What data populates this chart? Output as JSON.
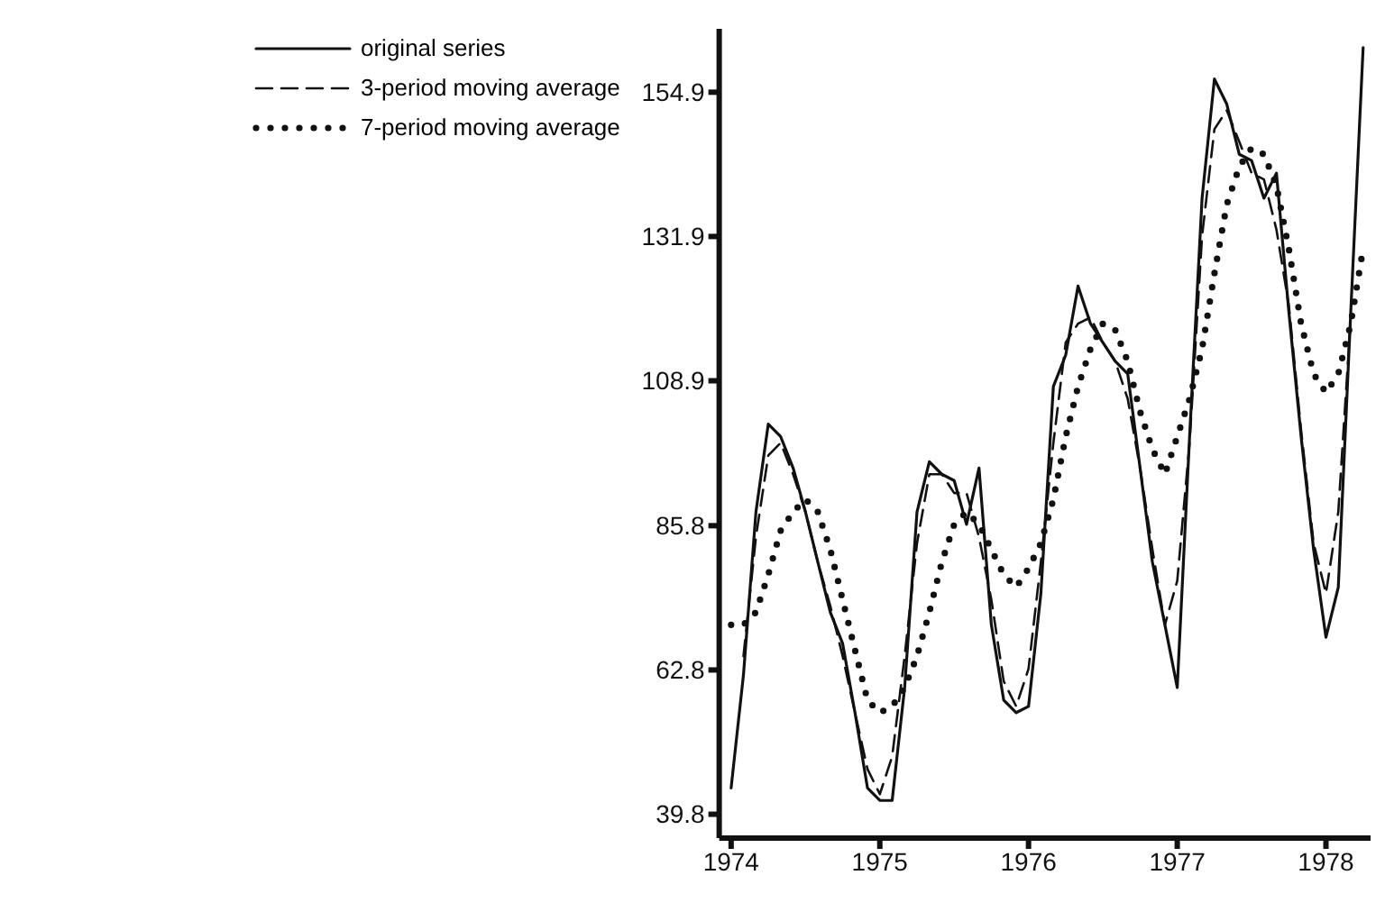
{
  "chart_data": {
    "type": "line",
    "x": [
      1974,
      1974.083,
      1974.167,
      1974.25,
      1974.333,
      1974.417,
      1974.5,
      1974.583,
      1974.667,
      1974.75,
      1974.833,
      1974.917,
      1975,
      1975.083,
      1975.167,
      1975.25,
      1975.333,
      1975.417,
      1975.5,
      1975.583,
      1975.667,
      1975.75,
      1975.833,
      1975.917,
      1976,
      1976.083,
      1976.167,
      1976.25,
      1976.333,
      1976.417,
      1976.5,
      1976.583,
      1976.667,
      1976.75,
      1976.833,
      1976.917,
      1977,
      1977.083,
      1977.167,
      1977.25,
      1977.333,
      1977.417,
      1977.5,
      1977.583,
      1977.667,
      1977.75,
      1977.833,
      1977.917,
      1978,
      1978.083,
      1978.167,
      1978.25
    ],
    "series": [
      {
        "name": "original series",
        "color": "#111111",
        "line_style": "solid",
        "values": [
          44,
          62,
          88,
          102,
          100,
          95,
          88,
          80,
          72,
          67,
          56,
          44,
          42,
          42,
          60,
          88,
          96,
          94,
          93,
          86,
          95,
          70,
          58,
          56,
          57,
          75,
          108,
          113,
          124,
          118,
          115,
          112,
          110,
          95,
          80,
          70,
          60,
          100,
          138,
          157,
          153,
          145,
          144,
          138,
          142,
          120,
          100,
          82,
          68,
          76,
          120,
          162
        ]
      },
      {
        "name": "3-period moving average",
        "color": "#111111",
        "line_style": "dashed",
        "values": [
          null,
          65,
          84,
          97,
          99,
          94,
          88,
          80,
          73,
          65,
          56,
          47,
          43,
          49,
          65,
          83,
          94,
          94,
          91,
          91,
          84,
          74,
          61,
          57,
          63,
          80,
          99,
          115,
          118,
          119,
          115,
          112,
          106,
          95,
          82,
          70,
          77,
          99,
          132,
          149,
          152,
          147,
          142,
          141,
          133,
          121,
          101,
          83,
          75,
          88,
          119,
          null
        ]
      },
      {
        "name": "7-period moving average",
        "color": "#111111",
        "line_style": "dotted",
        "values": [
          70,
          70,
          72,
          78,
          85,
          88,
          90,
          88,
          82,
          74,
          66,
          58,
          56,
          57,
          60,
          65,
          72,
          80,
          86,
          88,
          86,
          82,
          78,
          76,
          79,
          83,
          90,
          100,
          108,
          114,
          118,
          117,
          112,
          104,
          98,
          94,
          100,
          106,
          114,
          126,
          137,
          143,
          146,
          145,
          140,
          130,
          118,
          110,
          107,
          110,
          118,
          130
        ]
      }
    ],
    "xlim": [
      1973.92,
      1978.3
    ],
    "xticks": [
      1974,
      1975,
      1976,
      1977,
      1978
    ],
    "ylim": [
      36,
      165
    ],
    "yticks": [
      39.8,
      62.8,
      85.8,
      108.9,
      131.9,
      154.9
    ],
    "grid": false,
    "legend": "top left",
    "marker": "none"
  }
}
